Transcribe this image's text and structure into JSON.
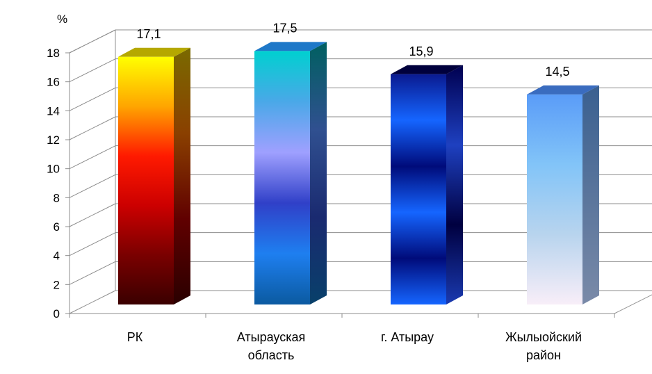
{
  "chart_data": {
    "type": "bar",
    "ylabel": "%",
    "ylim": [
      0,
      18
    ],
    "yticks": [
      "0",
      "2",
      "4",
      "6",
      "8",
      "10",
      "12",
      "14",
      "16",
      "18"
    ],
    "grid": true,
    "categories": [
      [
        "РК"
      ],
      [
        "Атырауская",
        "область"
      ],
      [
        "г. Атырау"
      ],
      [
        "Жылыойский",
        "район"
      ]
    ],
    "values": [
      17.1,
      17.5,
      15.9,
      14.5
    ],
    "value_labels": [
      "17,1",
      "17,5",
      "15,9",
      "14,5"
    ],
    "bar_styles": [
      {
        "front": [
          "#ffff00",
          "#ffa500",
          "#ff1a00",
          "#cc0000",
          "#7a0000",
          "#3a0000"
        ],
        "top": "#b5a800",
        "side": [
          "#7a6a00",
          "#8a4000",
          "#600000",
          "#2a0000"
        ]
      },
      {
        "front": [
          "#00d0d0",
          "#4aa8e8",
          "#9fa0ff",
          "#3040c8",
          "#1e7ff0",
          "#0b5aa0"
        ],
        "top": "#1e78c8",
        "side": [
          "#006060",
          "#305090",
          "#1a2a70",
          "#08406a"
        ]
      },
      {
        "front": [
          "#0a1a90",
          "#1565ff",
          "#000b7a",
          "#1565ff",
          "#000b7a",
          "#1565ff"
        ],
        "top": "#00003c",
        "side": [
          "#000050",
          "#1e40c0",
          "#000040",
          "#1a3ab0"
        ]
      },
      {
        "front": [
          "#5a9cf8",
          "#82c4f8",
          "#b8d4ee",
          "#f8eef8"
        ],
        "top": "#3a6cbf",
        "side": [
          "#3a6090",
          "#7a8aa8"
        ]
      }
    ]
  }
}
